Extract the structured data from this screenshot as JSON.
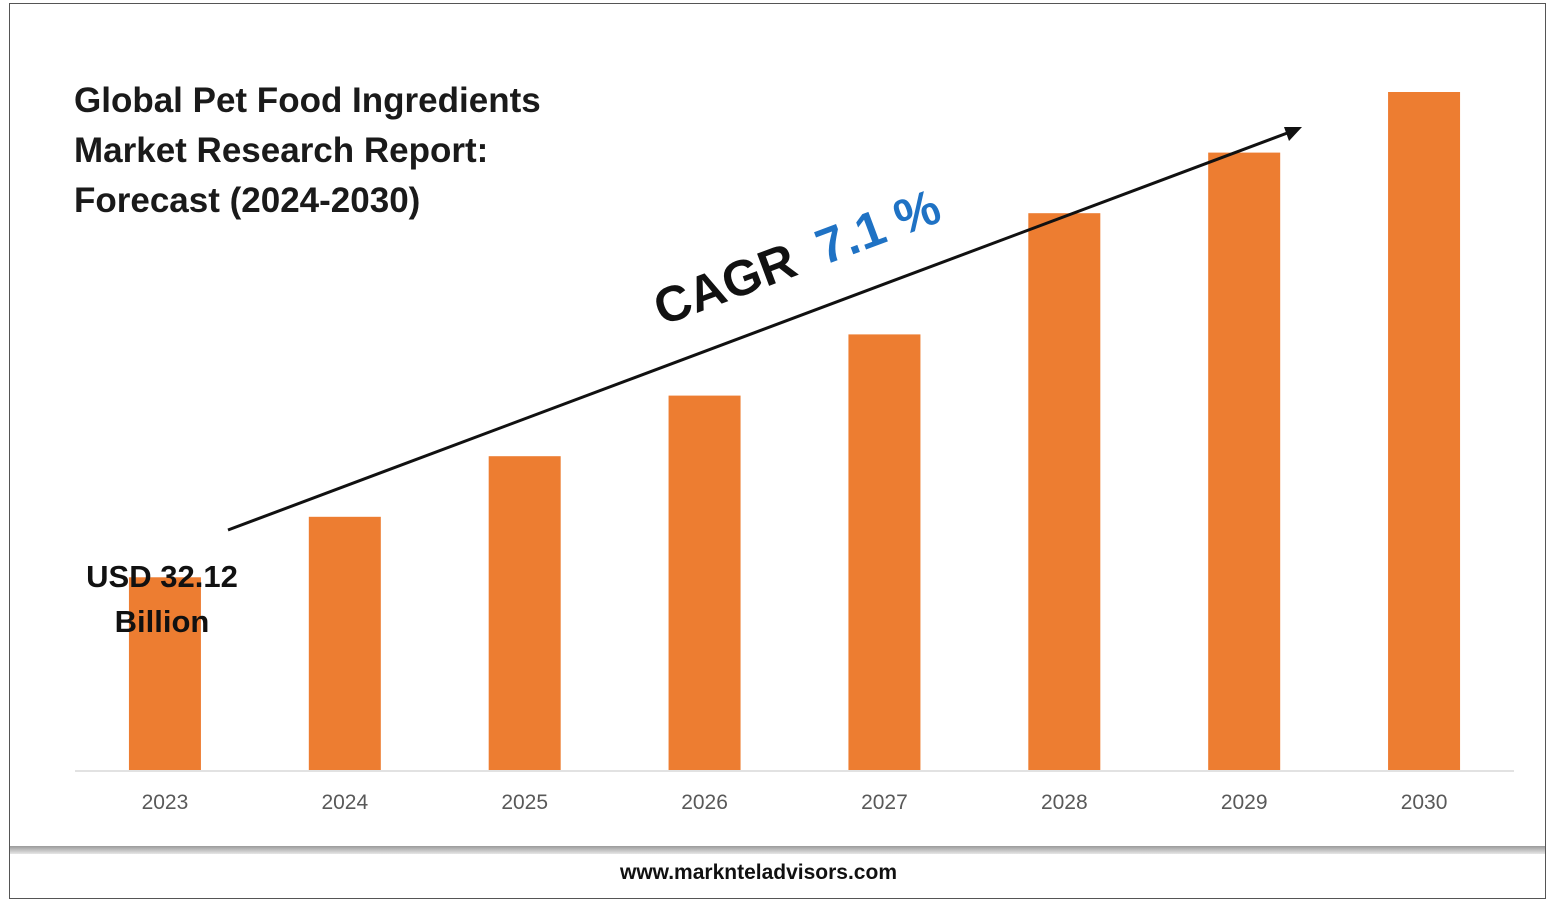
{
  "title_lines": [
    "Global Pet Food Ingredients",
    "Market Research Report:",
    "Forecast (2024-2030)"
  ],
  "cagr": {
    "label": "CAGR",
    "value": "7.1 %",
    "value_color": "#1f72c4"
  },
  "annotation": {
    "line1": "USD 32.12",
    "line2": "Billion"
  },
  "footer": {
    "url": "www.marknteladvisors.com"
  },
  "colors": {
    "bar": "#ED7D31",
    "axis": "#d9d9d9",
    "tick_label": "#595959"
  },
  "chart_data": {
    "type": "bar",
    "categories": [
      "2023",
      "2024",
      "2025",
      "2026",
      "2027",
      "2028",
      "2029",
      "2030"
    ],
    "values": [
      32.12,
      42.2,
      52.3,
      62.4,
      72.6,
      92.8,
      102.9,
      113.0
    ],
    "ylim": [
      0,
      120
    ],
    "grid": false,
    "legend": "none",
    "annotations": [
      "USD 32.12 Billion",
      "CAGR 7.1 %"
    ]
  }
}
